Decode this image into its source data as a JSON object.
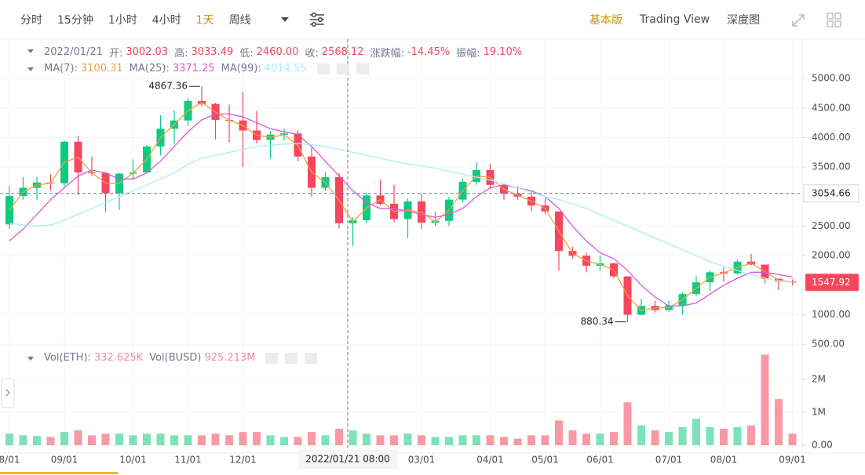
{
  "toolbar": {
    "intervals": [
      "分时",
      "15分钟",
      "1小时",
      "4小时",
      "1天",
      "周线"
    ],
    "views": [
      "基本版",
      "Trading View",
      "深度图"
    ]
  },
  "readout": {
    "date": "2022/01/21",
    "fields": [
      {
        "label": "开:",
        "value": "3002.03"
      },
      {
        "label": "高:",
        "value": "3033.49"
      },
      {
        "label": "低:",
        "value": "2460.00"
      },
      {
        "label": "收:",
        "value": "2568.12"
      },
      {
        "label": "涨跌幅:",
        "value": "-14.45%"
      },
      {
        "label": "振幅:",
        "value": "19.10%"
      }
    ]
  },
  "chart_data": {
    "type": "candlestick",
    "categories": [
      "8/01",
      null,
      null,
      null,
      "09/01",
      null,
      null,
      null,
      null,
      "10/01",
      null,
      null,
      null,
      "11/01",
      null,
      null,
      null,
      "12/01",
      null,
      null,
      null,
      null,
      null,
      null,
      null,
      null,
      null,
      null,
      null,
      null,
      "03/01",
      null,
      null,
      null,
      null,
      "04/01",
      null,
      null,
      null,
      "05/01",
      null,
      null,
      null,
      "06/01",
      null,
      null,
      null,
      null,
      "07/01",
      null,
      null,
      null,
      "08/01",
      null,
      null,
      null,
      null,
      "09/01"
    ],
    "open": [
      2530,
      3010,
      3150,
      3240,
      3225,
      3930,
      3410,
      3400,
      3060,
      3390,
      3410,
      3850,
      4150,
      4290,
      4620,
      4570,
      4300,
      4290,
      4120,
      3960,
      4050,
      4070,
      3680,
      3150,
      3330,
      2550,
      2600,
      3020,
      2880,
      2620,
      2920,
      2560,
      2590,
      2950,
      3250,
      3450,
      3200,
      3050,
      3000,
      2850,
      2750,
      2080,
      2000,
      1830,
      1870,
      1650,
      1000,
      1150,
      1080,
      1160,
      1350,
      1550,
      1720,
      1700,
      1900,
      1850,
      1610,
      1560
    ],
    "high": [
      3180,
      3330,
      3330,
      3380,
      3950,
      4030,
      3680,
      3420,
      3400,
      3630,
      3880,
      4380,
      4460,
      4670,
      4867.36,
      4590,
      4560,
      4780,
      4450,
      4110,
      4150,
      4130,
      3830,
      3420,
      3400,
      2650,
      3070,
      3290,
      3200,
      2970,
      3050,
      2750,
      3000,
      3300,
      3580,
      3560,
      3220,
      3180,
      3100,
      2970,
      2750,
      2150,
      2050,
      2000,
      1880,
      1650,
      1270,
      1240,
      1240,
      1380,
      1650,
      1750,
      1800,
      1930,
      2030,
      1850,
      1620,
      1600
    ],
    "low": [
      2450,
      2950,
      2950,
      3100,
      3150,
      3030,
      3350,
      2740,
      2780,
      3280,
      3400,
      3700,
      3900,
      4200,
      4530,
      3970,
      3920,
      3500,
      3900,
      3640,
      3950,
      3600,
      3000,
      3100,
      2460,
      2160,
      2550,
      2850,
      2570,
      2300,
      2450,
      2500,
      2500,
      2900,
      3200,
      3130,
      2950,
      2950,
      2750,
      2700,
      1750,
      1950,
      1720,
      1740,
      1620,
      880.34,
      990,
      1040,
      1050,
      1000,
      1320,
      1400,
      1560,
      1680,
      1840,
      1530,
      1420,
      1500
    ],
    "close": [
      3010,
      3150,
      3240,
      3225,
      3930,
      3410,
      3400,
      3060,
      3390,
      3410,
      3850,
      4150,
      4290,
      4620,
      4570,
      4300,
      4290,
      4120,
      3960,
      4050,
      4070,
      3680,
      3150,
      3330,
      2550,
      2600,
      3020,
      2880,
      2620,
      2920,
      2560,
      2590,
      2950,
      3250,
      3450,
      3200,
      3050,
      3000,
      2850,
      2750,
      2080,
      2000,
      1830,
      1870,
      1650,
      1000,
      1150,
      1080,
      1160,
      1350,
      1550,
      1720,
      1700,
      1900,
      1850,
      1610,
      1560,
      1547.92
    ],
    "up_color": "#0ecb81",
    "down_color": "#f6465d",
    "series": [
      {
        "name": "MA(7):",
        "readout": "3100.31",
        "color": "#f0a041",
        "values": [
          2770,
          3080,
          3195,
          3230,
          3580,
          3670,
          3405,
          3230,
          3225,
          3400,
          3630,
          4000,
          4220,
          4455,
          4595,
          4435,
          4295,
          4205,
          4040,
          4005,
          4050,
          3865,
          3415,
          3240,
          2940,
          2575,
          2810,
          2950,
          2750,
          2770,
          2740,
          2575,
          2770,
          3100,
          3350,
          3325,
          3125,
          3025,
          2925,
          2800,
          2415,
          2040,
          1915,
          1850,
          1760,
          1325,
          1075,
          1115,
          1120,
          1255,
          1450,
          1635,
          1710,
          1800,
          1875,
          1730,
          1585,
          1555
        ]
      },
      {
        "name": "MA(25):",
        "readout": "3371.25",
        "color": "#d957d9",
        "values": [
          2250,
          2450,
          2700,
          2950,
          3150,
          3350,
          3450,
          3400,
          3300,
          3300,
          3400,
          3600,
          3850,
          4100,
          4300,
          4400,
          4400,
          4350,
          4250,
          4150,
          4100,
          4050,
          3850,
          3600,
          3350,
          3100,
          2900,
          2800,
          2800,
          2750,
          2700,
          2650,
          2700,
          2800,
          3000,
          3150,
          3200,
          3150,
          3100,
          3000,
          2800,
          2500,
          2250,
          2050,
          1950,
          1750,
          1500,
          1300,
          1150,
          1150,
          1200,
          1350,
          1500,
          1620,
          1720,
          1720,
          1680,
          1640
        ]
      },
      {
        "name": "MA(99):",
        "readout": "4014.55",
        "color": "#a6eef5",
        "values": [
          2550,
          2520,
          2500,
          2520,
          2600,
          2700,
          2800,
          2900,
          3000,
          3100,
          3200,
          3300,
          3400,
          3550,
          3650,
          3700,
          3750,
          3800,
          3850,
          3870,
          3890,
          3900,
          3880,
          3850,
          3800,
          3750,
          3700,
          3650,
          3600,
          3550,
          3520,
          3480,
          3430,
          3380,
          3330,
          3280,
          3220,
          3150,
          3080,
          3000,
          2950,
          2880,
          2800,
          2700,
          2600,
          2500,
          2400,
          2300,
          2200,
          2100,
          2000,
          1900,
          1820,
          1750,
          1680,
          1620,
          1570,
          1550
        ]
      }
    ],
    "ylim": [
      490,
      5600
    ],
    "yticks": [
      {
        "value": 500,
        "label": "500.00"
      },
      {
        "value": 1000,
        "label": "1000.00"
      },
      {
        "value": 2000,
        "label": "2000.00"
      },
      {
        "value": 2500,
        "label": "2500.00"
      },
      {
        "value": 3500,
        "label": "3500.00"
      },
      {
        "value": 4000,
        "label": "4000.00"
      },
      {
        "value": 4500,
        "label": "4500.00"
      },
      {
        "value": 5000,
        "label": "5000.00"
      }
    ],
    "grid": true,
    "high_marker": 4867.36,
    "low_marker": 880.34,
    "crosshair": {
      "label": "2022/01/21 08:00",
      "price": 3054.66
    },
    "last_price": 1547.92,
    "volume": {
      "name": "Vol(ETH):",
      "readout": "332.625K",
      "values": [
        350000,
        300000,
        280000,
        250000,
        400000,
        450000,
        300000,
        350000,
        350000,
        300000,
        350000,
        350000,
        300000,
        300000,
        300000,
        350000,
        300000,
        400000,
        400000,
        300000,
        250000,
        250000,
        400000,
        300000,
        500000,
        450000,
        350000,
        300000,
        300000,
        350000,
        300000,
        250000,
        250000,
        300000,
        300000,
        300000,
        250000,
        200000,
        300000,
        300000,
        750000,
        450000,
        350000,
        350000,
        400000,
        1300000,
        600000,
        450000,
        400000,
        550000,
        800000,
        550000,
        500000,
        550000,
        600000,
        2750000,
        1400000,
        350000
      ],
      "ylim": [
        0,
        2900000
      ],
      "yticks": [
        {
          "value": 0,
          "label": "0.00"
        },
        {
          "value": 1000000,
          "label": "1M"
        },
        {
          "value": 2000000,
          "label": "2M"
        }
      ]
    },
    "quote_volume": {
      "name": "Vol(BUSD)",
      "readout": "925.213M"
    }
  }
}
